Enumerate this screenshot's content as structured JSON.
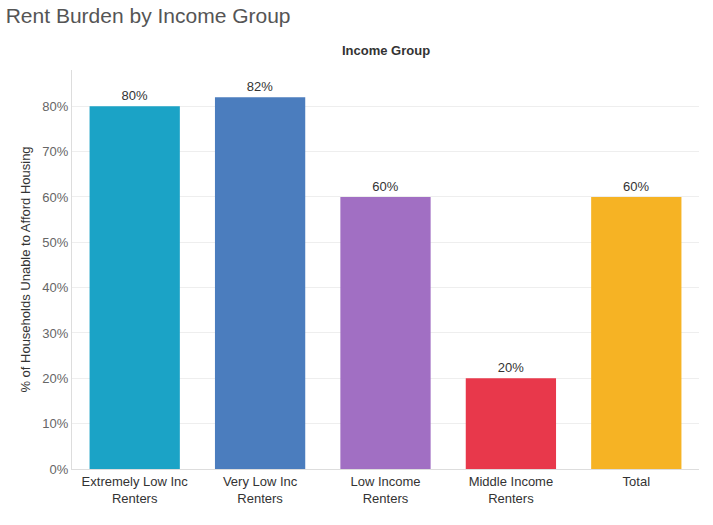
{
  "chart_data": {
    "type": "bar",
    "title": "Rent Burden by Income Group",
    "xlabel": "Income Group",
    "ylabel": "% of Households Unable to Afford Housing",
    "categories": [
      "Extremely Low Inc Renters",
      "Very Low Inc Renters",
      "Low Income Renters",
      "Middle Income Renters",
      "Total"
    ],
    "values": [
      80,
      82,
      60,
      20,
      60
    ],
    "value_labels": [
      "80%",
      "82%",
      "60%",
      "20%",
      "60%"
    ],
    "colors": [
      "#1ba3c6",
      "#4b7dbe",
      "#a16fc3",
      "#e8384b",
      "#f6b324"
    ],
    "ylim": [
      0,
      88
    ],
    "yticks": [
      {
        "value": 0,
        "label": "0%"
      },
      {
        "value": 10,
        "label": "10%"
      },
      {
        "value": 20,
        "label": "20%"
      },
      {
        "value": 30,
        "label": "30%"
      },
      {
        "value": 40,
        "label": "40%"
      },
      {
        "value": 50,
        "label": "50%"
      },
      {
        "value": 60,
        "label": "60%"
      },
      {
        "value": 70,
        "label": "70%"
      },
      {
        "value": 80,
        "label": "80%"
      }
    ],
    "grid": true,
    "data_labels": true
  }
}
